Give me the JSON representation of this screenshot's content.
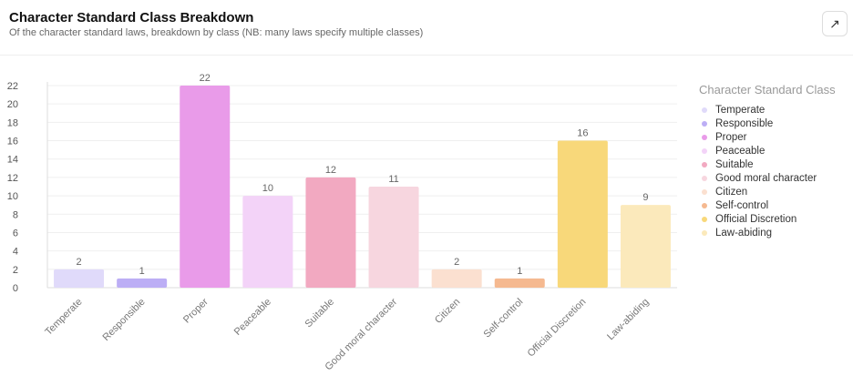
{
  "header": {
    "title": "Character Standard Class Breakdown",
    "subtitle": "Of the character standard laws, breakdown by class (NB: many laws specify multiple classes)",
    "expand_icon": "arrow-up-right-icon"
  },
  "chart_data": {
    "type": "bar",
    "title": "Character Standard Class Breakdown",
    "categories": [
      "Temperate",
      "Responsible",
      "Proper",
      "Peaceable",
      "Suitable",
      "Good moral character",
      "Citizen",
      "Self-control",
      "Official Discretion",
      "Law-abiding"
    ],
    "values": [
      2,
      1,
      22,
      10,
      12,
      11,
      2,
      1,
      16,
      9
    ],
    "colors": [
      "#e0dafa",
      "#bcaef5",
      "#e99be9",
      "#f3d3f8",
      "#f2a9c1",
      "#f7d6df",
      "#fbe0d0",
      "#f5b990",
      "#f8d87a",
      "#fbe9bb"
    ],
    "yticks": [
      0,
      2,
      4,
      6,
      8,
      10,
      12,
      14,
      16,
      18,
      20,
      22
    ],
    "ylim": [
      0,
      22
    ],
    "grid": true,
    "legend": {
      "title": "Character Standard Class",
      "placement": "right"
    }
  }
}
